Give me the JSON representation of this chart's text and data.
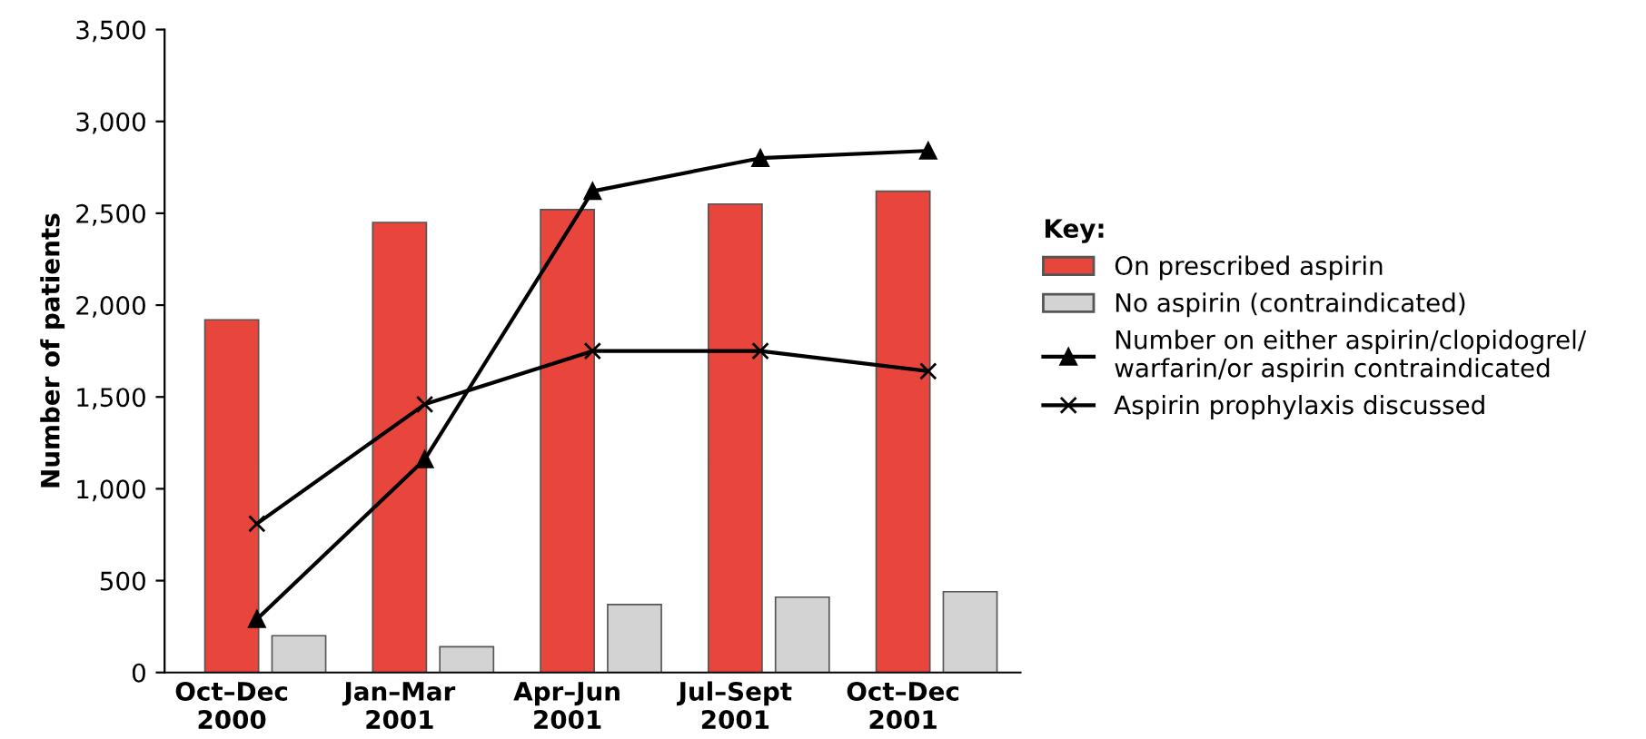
{
  "chart_data": {
    "type": "bar",
    "categories": [
      "Oct–Dec\n2000",
      "Jan–Mar\n2001",
      "Apr–Jun\n2001",
      "Jul–Sept\n2001",
      "Oct–Dec\n2001"
    ],
    "ylabel": "Number of patients",
    "legend_title": "Key:",
    "series": [
      {
        "name": "On prescribed aspirin",
        "color": "#e8453c",
        "values": [
          1920,
          2450,
          2520,
          2550,
          2620
        ]
      },
      {
        "name": "No aspirin (contraindicated)",
        "color": "#d3d3d3",
        "values": [
          200,
          140,
          370,
          410,
          440
        ]
      },
      {
        "name": "Number on either aspirin/clopidogrel/\nwarfarin/or aspirin contraindicated",
        "type": "line",
        "color": "#000000",
        "marker": "triangle",
        "values": [
          290,
          1160,
          2620,
          2800,
          2840
        ]
      },
      {
        "name": "Aspirin prophylaxis discussed",
        "type": "line",
        "color": "#000000",
        "marker": "cross",
        "values": [
          810,
          1460,
          1750,
          1750,
          1640
        ]
      }
    ],
    "ylim": [
      0,
      3500
    ],
    "yticks": [
      0,
      500,
      {
        "value": 1000,
        "label": "1,000"
      },
      {
        "value": 1500,
        "label": "1,500"
      },
      {
        "value": 2000,
        "label": "2,000"
      },
      {
        "value": 2500,
        "label": "2,500"
      },
      {
        "value": 3000,
        "label": "3,000"
      },
      {
        "value": 3500,
        "label": "3,500"
      }
    ],
    "grid": false,
    "legend": "right"
  }
}
